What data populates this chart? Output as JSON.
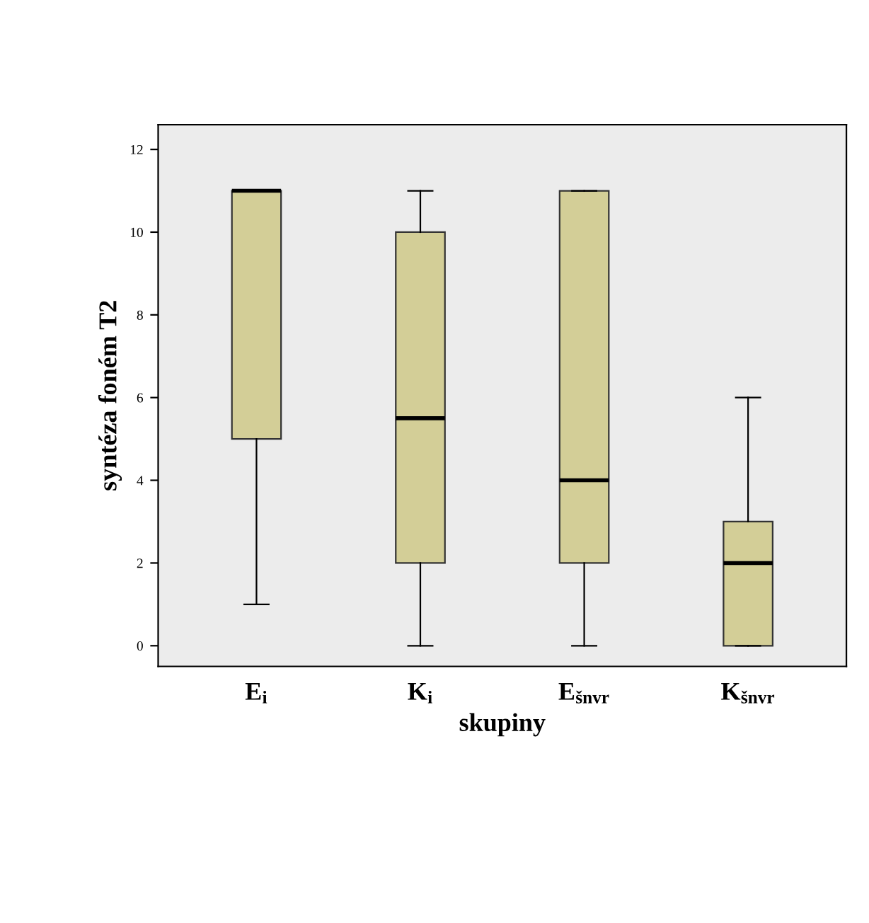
{
  "chart_data": {
    "type": "box",
    "xlabel": "skupiny",
    "ylabel": "syntéza foném T2",
    "categories": [
      "E$_{i}$",
      "K$_{i}$",
      "E$_{šnvr}$",
      "K$_{šnvr}$"
    ],
    "series": [
      {
        "color": "#d3ce97",
        "boxes": [
          {
            "low": 1,
            "q1": 5,
            "median": 11,
            "q3": 11,
            "high": 11
          },
          {
            "low": 0,
            "q1": 2,
            "median": 5.5,
            "q3": 10,
            "high": 11
          },
          {
            "low": 0,
            "q1": 2,
            "median": 4,
            "q3": 11,
            "high": 11
          },
          {
            "low": 0,
            "q1": 0,
            "median": 2,
            "q3": 3,
            "high": 6
          }
        ]
      }
    ],
    "ylim": [
      -0.5,
      12.6
    ],
    "yticks": [
      0,
      2,
      4,
      6,
      8,
      10,
      12
    ],
    "grid": false,
    "legend": false
  }
}
